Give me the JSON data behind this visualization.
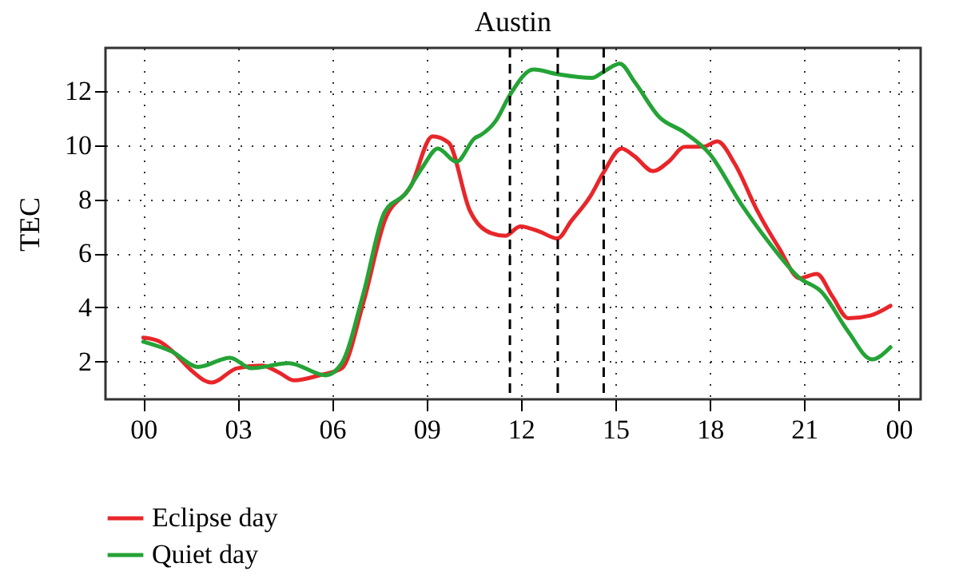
{
  "chart_data": {
    "type": "line",
    "title": "Austin",
    "ylabel": "TEC",
    "xlim": [
      -1.2,
      24.7
    ],
    "xticks": [
      {
        "value": 0,
        "label": "00"
      },
      {
        "value": 3,
        "label": "03"
      },
      {
        "value": 6,
        "label": "06"
      },
      {
        "value": 9,
        "label": "09"
      },
      {
        "value": 12,
        "label": "12"
      },
      {
        "value": 15,
        "label": "15"
      },
      {
        "value": 18,
        "label": "18"
      },
      {
        "value": 21,
        "label": "21"
      },
      {
        "value": 24,
        "label": "00"
      }
    ],
    "ylim": [
      0.6,
      13.6
    ],
    "yticks": [
      2,
      4,
      6,
      8,
      10,
      12
    ],
    "grid": true,
    "legend": "bottom left",
    "line_style": "solid",
    "ref_lines": [
      {
        "axis": "x",
        "value": 11.65,
        "color": "#000000",
        "line_style": "dashed"
      },
      {
        "axis": "x",
        "value": 13.17,
        "color": "#000000",
        "line_style": "dashed"
      },
      {
        "axis": "x",
        "value": 14.63,
        "color": "#000000",
        "line_style": "dashed"
      }
    ],
    "series": [
      {
        "name": "Eclipse day",
        "color": "#e8262a",
        "x": [
          0,
          0.5,
          1,
          1.5,
          2.17,
          2.98,
          3.77,
          4.3,
          4.79,
          5.63,
          6.31,
          7.0,
          7.67,
          8.51,
          9.19,
          9.7,
          10.37,
          11.05,
          11.5,
          11.98,
          12.6,
          13.16,
          13.6,
          14.2,
          14.63,
          15.2,
          15.6,
          16.2,
          16.7,
          17.2,
          17.8,
          18.24,
          18.8,
          19.5,
          20.2,
          20.86,
          21.4,
          21.9,
          22.4,
          23.1,
          23.74
        ],
        "values": [
          2.88,
          2.75,
          2.3,
          1.7,
          1.22,
          1.75,
          1.85,
          1.6,
          1.3,
          1.5,
          1.75,
          4.2,
          7.2,
          8.5,
          10.33,
          10.1,
          7.6,
          6.75,
          6.65,
          7.0,
          6.8,
          6.55,
          7.2,
          8.1,
          9.0,
          9.88,
          9.6,
          9.04,
          9.4,
          9.94,
          9.95,
          10.14,
          9.3,
          7.6,
          6.2,
          5.08,
          5.24,
          4.4,
          3.6,
          3.7,
          4.06
        ]
      },
      {
        "name": "Quiet day",
        "color": "#24a336",
        "x": [
          0,
          0.9,
          1.74,
          2.76,
          3.43,
          4.62,
          5.8,
          6.31,
          6.99,
          7.67,
          8.34,
          8.88,
          9.36,
          9.95,
          10.54,
          10.71,
          11.2,
          11.64,
          12.4,
          13.16,
          14.26,
          14.64,
          15.14,
          15.62,
          16.38,
          17.2,
          17.99,
          19.0,
          19.85,
          20.86,
          21.54,
          22.39,
          23.15,
          23.74
        ],
        "values": [
          2.73,
          2.37,
          1.8,
          2.14,
          1.75,
          1.94,
          1.49,
          1.94,
          4.49,
          7.53,
          8.22,
          9.2,
          9.88,
          9.39,
          10.27,
          10.37,
          10.9,
          11.84,
          12.8,
          12.63,
          12.49,
          12.73,
          13.02,
          12.33,
          11.06,
          10.47,
          9.69,
          7.82,
          6.45,
          5.08,
          4.59,
          3.12,
          2.08,
          2.53
        ]
      }
    ]
  }
}
